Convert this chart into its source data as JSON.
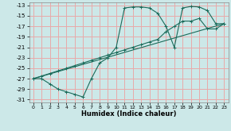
{
  "xlabel": "Humidex (Indice chaleur)",
  "bg_color": "#cce8e8",
  "grid_color": "#e8aaaa",
  "line_color": "#1a6b5a",
  "xlim": [
    -0.5,
    23.5
  ],
  "ylim": [
    -31.5,
    -12.5
  ],
  "xticks": [
    0,
    1,
    2,
    3,
    4,
    5,
    6,
    7,
    8,
    9,
    10,
    11,
    12,
    13,
    14,
    15,
    16,
    17,
    18,
    19,
    20,
    21,
    22,
    23
  ],
  "yticks": [
    -31,
    -29,
    -27,
    -25,
    -23,
    -21,
    -19,
    -17,
    -15,
    -13
  ],
  "curve1_x": [
    0,
    1,
    2,
    3,
    4,
    5,
    6,
    7,
    8,
    9,
    10,
    11,
    12,
    13,
    14,
    15,
    16,
    17,
    18,
    19,
    20,
    21,
    22,
    23
  ],
  "curve1_y": [
    -27,
    -27,
    -28,
    -29,
    -29.5,
    -30,
    -30.5,
    -27,
    -24,
    -23,
    -21,
    -13.5,
    -13.3,
    -13.3,
    -13.5,
    -14.5,
    -17,
    -21,
    -13.5,
    -13.2,
    -13.3,
    -14,
    -16.5,
    -16.5
  ],
  "curve2_x": [
    0,
    1,
    2,
    3,
    4,
    5,
    6,
    7,
    8,
    9,
    10,
    11,
    12,
    13,
    14,
    15,
    16,
    17,
    18,
    19,
    20,
    21,
    22,
    23
  ],
  "curve2_y": [
    -27,
    -26.5,
    -26,
    -25.5,
    -25,
    -24.5,
    -24,
    -23.5,
    -23,
    -22.5,
    -22,
    -21.5,
    -21,
    -20.5,
    -20,
    -19.5,
    -18,
    -17,
    -16,
    -16,
    -15.5,
    -17.5,
    -17.5,
    -16.5
  ],
  "curve3_x": [
    0,
    23
  ],
  "curve3_y": [
    -27,
    -16.5
  ]
}
